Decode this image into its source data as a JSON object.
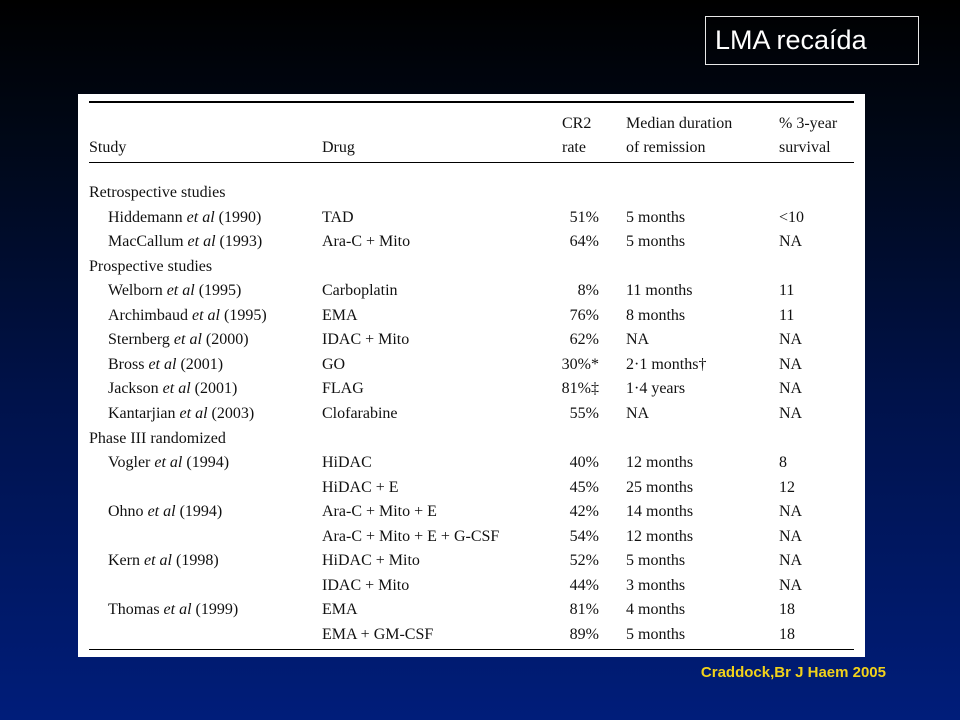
{
  "slide": {
    "title": "LMA recaída",
    "source": "Craddock,Br J Haem 2005"
  },
  "table": {
    "headers": {
      "study": "Study",
      "drug": "Drug",
      "cr2_line1": "CR2",
      "cr2_line2": "rate",
      "median_line1": "Median duration",
      "median_line2": "of remission",
      "survival_line1": "% 3-year",
      "survival_line2": "survival"
    },
    "rows": [
      {
        "type": "section",
        "study": "Retrospective studies"
      },
      {
        "type": "data",
        "author": "Hiddemann",
        "etal": "et al",
        "year": "(1990)",
        "drug": "TAD",
        "cr2": "51%",
        "median": "5 months",
        "survival": "<10"
      },
      {
        "type": "data",
        "author": "MacCallum",
        "etal": "et al",
        "year": "(1993)",
        "drug": "Ara-C + Mito",
        "cr2": "64%",
        "median": "5 months",
        "survival": "NA"
      },
      {
        "type": "section",
        "study": "Prospective studies"
      },
      {
        "type": "data",
        "author": "Welborn",
        "etal": "et al",
        "year": "(1995)",
        "drug": "Carboplatin",
        "cr2": "8%",
        "median": "11 months",
        "survival": "11"
      },
      {
        "type": "data",
        "author": "Archimbaud",
        "etal": "et al",
        "year": "(1995)",
        "drug": "EMA",
        "cr2": "76%",
        "median": "8 months",
        "survival": "11"
      },
      {
        "type": "data",
        "author": "Sternberg",
        "etal": "et al",
        "year": "(2000)",
        "drug": "IDAC + Mito",
        "cr2": "62%",
        "median": "NA",
        "survival": "NA"
      },
      {
        "type": "data",
        "author": "Bross",
        "etal": "et al",
        "year": "(2001)",
        "drug": "GO",
        "cr2": "30%*",
        "median": "2·1 months†",
        "survival": "NA"
      },
      {
        "type": "data",
        "author": "Jackson",
        "etal": "et al",
        "year": "(2001)",
        "drug": "FLAG",
        "cr2": "81%‡",
        "median": "1·4 years",
        "survival": "NA"
      },
      {
        "type": "data",
        "author": "Kantarjian",
        "etal": "et al",
        "year": "(2003)",
        "drug": "Clofarabine",
        "cr2": "55%",
        "median": "NA",
        "survival": "NA"
      },
      {
        "type": "section",
        "study": "Phase III randomized"
      },
      {
        "type": "data",
        "author": "Vogler",
        "etal": "et al",
        "year": "(1994)",
        "drug": "HiDAC",
        "cr2": "40%",
        "median": "12 months",
        "survival": "8"
      },
      {
        "type": "data",
        "author": "",
        "etal": "",
        "year": "",
        "drug": "HiDAC + E",
        "cr2": "45%",
        "median": "25 months",
        "survival": "12"
      },
      {
        "type": "data",
        "author": "Ohno",
        "etal": "et al",
        "year": "(1994)",
        "drug": "Ara-C + Mito + E",
        "cr2": "42%",
        "median": "14 months",
        "survival": "NA"
      },
      {
        "type": "data",
        "author": "",
        "etal": "",
        "year": "",
        "drug": "Ara-C + Mito + E + G-CSF",
        "cr2": "54%",
        "median": "12 months",
        "survival": "NA"
      },
      {
        "type": "data",
        "author": "Kern",
        "etal": "et al",
        "year": "(1998)",
        "drug": "HiDAC + Mito",
        "cr2": "52%",
        "median": "5 months",
        "survival": "NA"
      },
      {
        "type": "data",
        "author": "",
        "etal": "",
        "year": "",
        "drug": "IDAC + Mito",
        "cr2": "44%",
        "median": "3 months",
        "survival": "NA"
      },
      {
        "type": "data",
        "author": "Thomas",
        "etal": "et al",
        "year": "(1999)",
        "drug": "EMA",
        "cr2": "81%",
        "median": "4 months",
        "survival": "18"
      },
      {
        "type": "data",
        "author": "",
        "etal": "",
        "year": "",
        "drug": "EMA + GM-CSF",
        "cr2": "89%",
        "median": "5 months",
        "survival": "18"
      }
    ]
  }
}
